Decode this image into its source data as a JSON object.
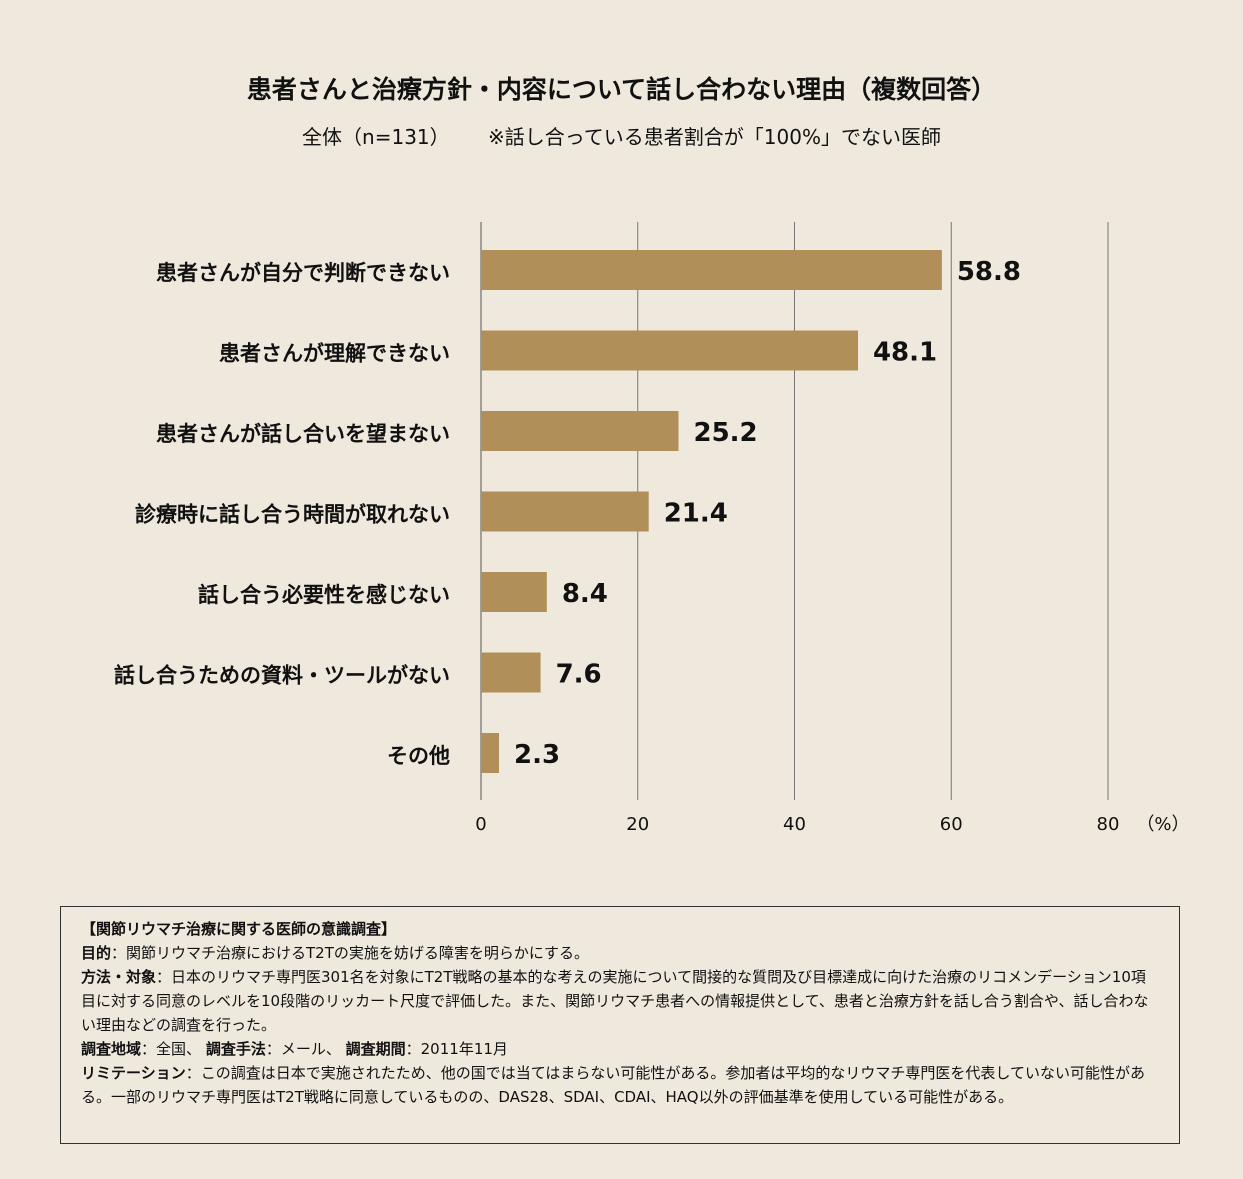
{
  "title": "患者さんと治療方針・内容について話し合わない理由（複数回答）",
  "subtitle": {
    "base": "全体（n=131）",
    "note": "※話し合っている患者割合が「100%」でない医師"
  },
  "colors": {
    "background": "#efe9dd",
    "bar": "#b08f58",
    "grid": "#777777"
  },
  "chart_data": {
    "type": "bar",
    "orientation": "horizontal",
    "categories": [
      "患者さんが自分で判断できない",
      "患者さんが理解できない",
      "患者さんが話し合いを望まない",
      "診療時に話し合う時間が取れない",
      "話し合う必要性を感じない",
      "話し合うための資料・ツールがない",
      "その他"
    ],
    "values": [
      58.8,
      48.1,
      25.2,
      21.4,
      8.4,
      7.6,
      2.3
    ],
    "value_labels": [
      "58.8",
      "48.1",
      "25.2",
      "21.4",
      "8.4",
      "7.6",
      "2.3"
    ],
    "xlim": [
      0,
      80
    ],
    "xticks": [
      "0",
      "20",
      "40",
      "60",
      "80"
    ],
    "xunit": "（%）",
    "grid": true
  },
  "note": {
    "heading": "【関節リウマチ治療に関する医師の意識調査】",
    "lines": [
      {
        "label": "目的",
        "text": "：関節リウマチ治療におけるT2Tの実施を妨げる障害を明らかにする。"
      },
      {
        "label": "方法・対象",
        "text": "：日本のリウマチ専門医301名を対象にT2T戦略の基本的な考えの実施について間接的な質問及び目標達成に向けた治療のリコメンデーション10項目に対する同意のレベルを10段階のリッカート尺度で評価した。また、関節リウマチ患者への情報提供として、患者と治療方針を話し合う割合や、話し合わない理由などの調査を行った。"
      },
      {
        "label": "調査地域",
        "text": "：全国、",
        "label2": "調査手法",
        "text2": "：メール、",
        "label3": "調査期間",
        "text3": "：2011年11月"
      },
      {
        "label": "リミテーション",
        "text": "：この調査は日本で実施されたため、他の国では当てはまらない可能性がある。参加者は平均的なリウマチ専門医を代表していない可能性がある。一部のリウマチ専門医はT2T戦略に同意しているものの、DAS28、SDAI、CDAI、HAQ以外の評価基準を使用している可能性がある。"
      }
    ]
  }
}
